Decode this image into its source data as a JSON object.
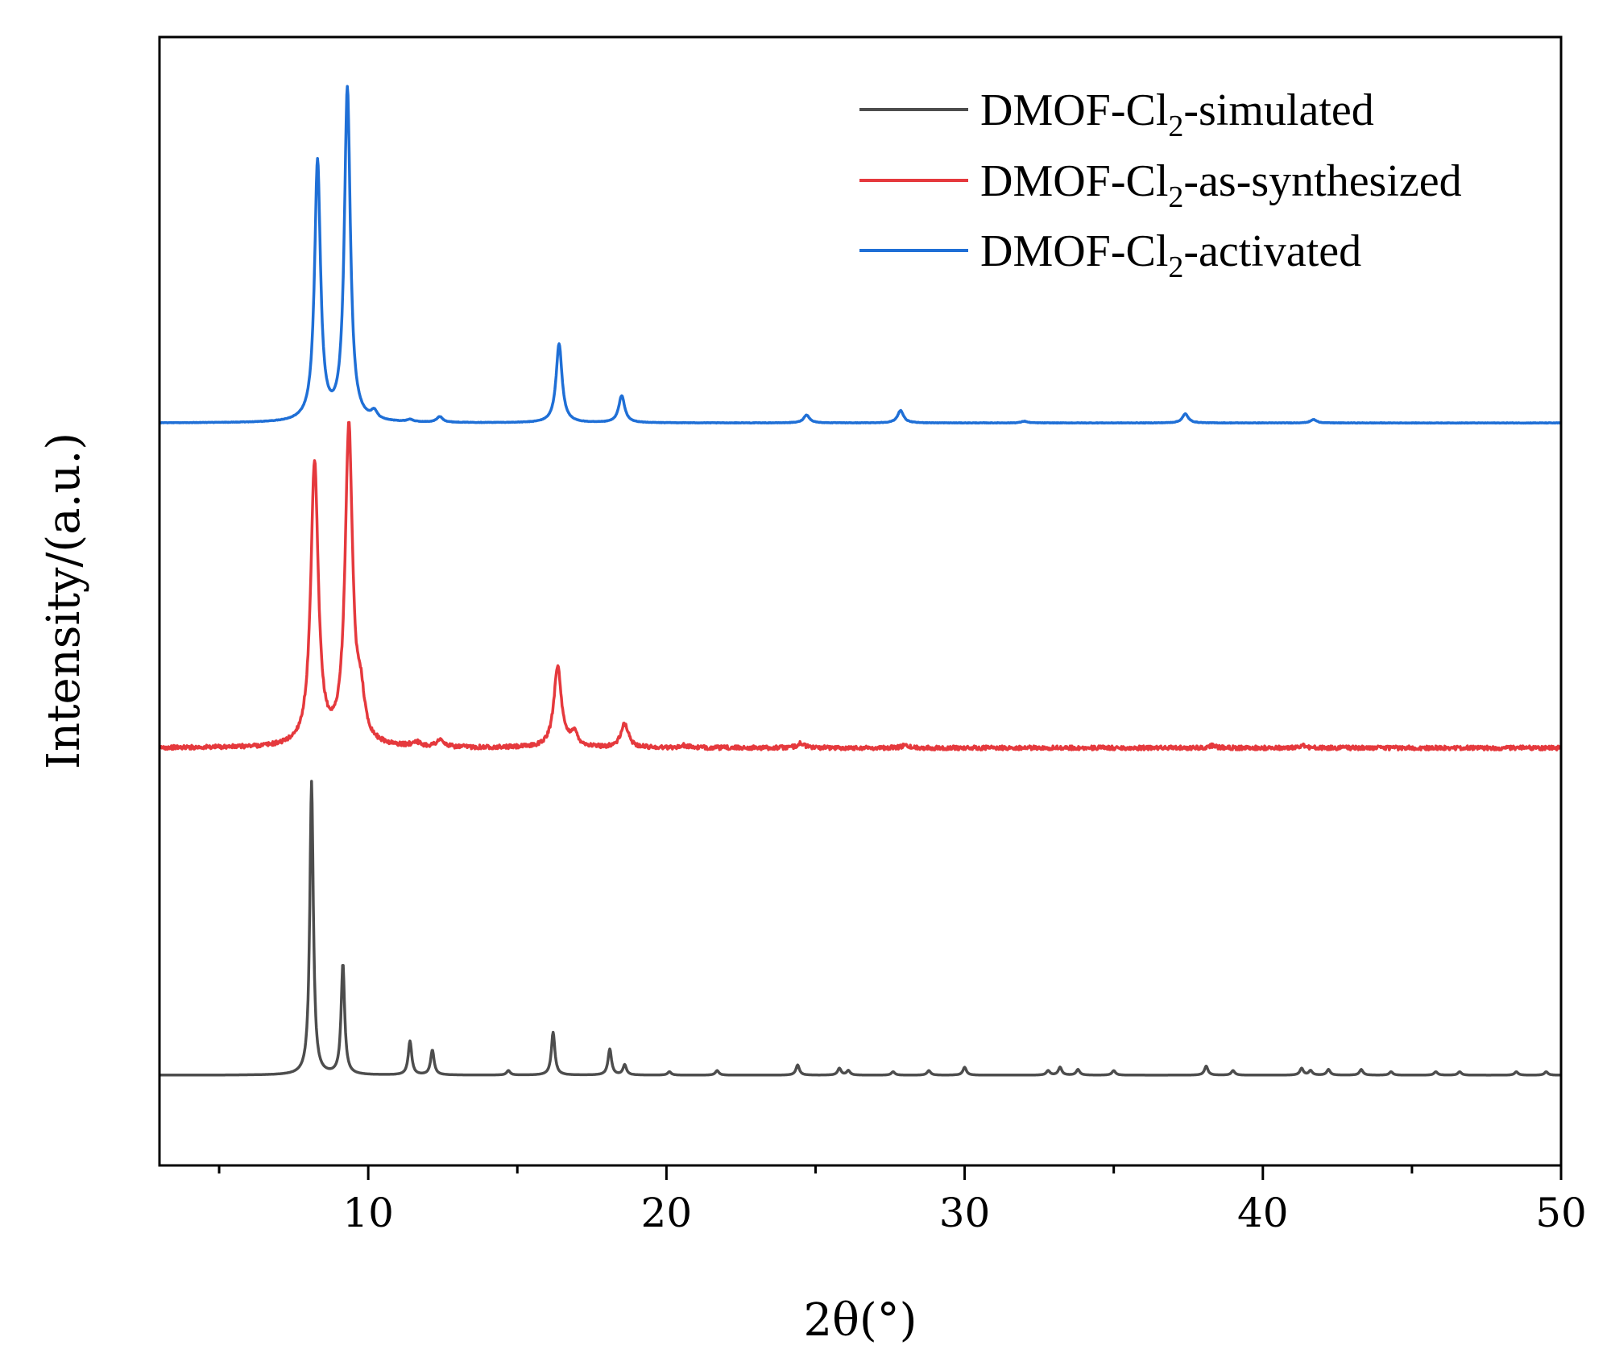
{
  "chart_data": {
    "type": "line",
    "title": "",
    "xlabel": "2θ(°)",
    "ylabel": "Intensity/(a.u.)",
    "xlim": [
      3,
      50
    ],
    "ylim": [
      0,
      100
    ],
    "xticks": [
      10,
      20,
      30,
      40,
      50
    ],
    "xtick_labels": [
      "10",
      "20",
      "30",
      "40",
      "50"
    ],
    "minor_xticks": [
      5,
      15,
      25,
      35,
      45
    ],
    "grid": false,
    "legend_position": "top-right",
    "series": [
      {
        "name": "DMOF-Cl2-simulated",
        "legend": {
          "prefix": "DMOF-Cl",
          "sub": "2",
          "suffix": "-simulated"
        },
        "color": "#4d4d4d",
        "baseline": 8,
        "noise": 0.0,
        "width": 0.07,
        "peaks": [
          [
            8.1,
            26
          ],
          [
            9.15,
            9.8
          ],
          [
            11.4,
            3.0
          ],
          [
            12.15,
            2.2
          ],
          [
            14.7,
            0.4
          ],
          [
            16.2,
            3.8
          ],
          [
            18.1,
            2.3
          ],
          [
            18.6,
            0.9
          ],
          [
            20.1,
            0.3
          ],
          [
            21.7,
            0.4
          ],
          [
            24.4,
            0.9
          ],
          [
            25.8,
            0.6
          ],
          [
            26.1,
            0.4
          ],
          [
            27.6,
            0.3
          ],
          [
            28.8,
            0.4
          ],
          [
            30.0,
            0.7
          ],
          [
            32.8,
            0.4
          ],
          [
            33.2,
            0.7
          ],
          [
            33.8,
            0.5
          ],
          [
            35.0,
            0.4
          ],
          [
            38.1,
            0.8
          ],
          [
            39.0,
            0.4
          ],
          [
            41.3,
            0.6
          ],
          [
            41.6,
            0.4
          ],
          [
            42.2,
            0.5
          ],
          [
            43.3,
            0.5
          ],
          [
            44.3,
            0.3
          ],
          [
            45.8,
            0.3
          ],
          [
            46.6,
            0.3
          ],
          [
            48.5,
            0.3
          ],
          [
            49.5,
            0.3
          ]
        ]
      },
      {
        "name": "DMOF-Cl2-as-synthesized",
        "legend": {
          "prefix": "DMOF-Cl",
          "sub": "2",
          "suffix": "-as-synthesized"
        },
        "color": "#e5393d",
        "baseline": 37,
        "noise": 0.18,
        "width": 0.15,
        "peaks": [
          [
            8.2,
            25
          ],
          [
            9.35,
            28
          ],
          [
            9.75,
            3.5
          ],
          [
            11.6,
            0.4
          ],
          [
            12.4,
            0.6
          ],
          [
            16.35,
            7.2
          ],
          [
            16.9,
            1.2
          ],
          [
            18.6,
            2.1
          ],
          [
            20.6,
            0.2
          ],
          [
            24.5,
            0.4
          ],
          [
            28.0,
            0.2
          ],
          [
            38.3,
            0.2
          ],
          [
            41.3,
            0.2
          ]
        ]
      },
      {
        "name": "DMOF-Cl2-activated",
        "legend": {
          "prefix": "DMOF-Cl",
          "sub": "2",
          "suffix": "-activated"
        },
        "color": "#1f6fd6",
        "baseline": 65.8,
        "noise": 0.02,
        "width": 0.12,
        "peaks": [
          [
            8.3,
            23
          ],
          [
            9.3,
            29.5
          ],
          [
            10.2,
            0.7
          ],
          [
            11.4,
            0.2
          ],
          [
            12.4,
            0.5
          ],
          [
            16.4,
            7.0
          ],
          [
            18.5,
            2.4
          ],
          [
            24.7,
            0.7
          ],
          [
            27.85,
            1.1
          ],
          [
            32.0,
            0.15
          ],
          [
            37.4,
            0.8
          ],
          [
            41.7,
            0.3
          ]
        ]
      }
    ]
  }
}
